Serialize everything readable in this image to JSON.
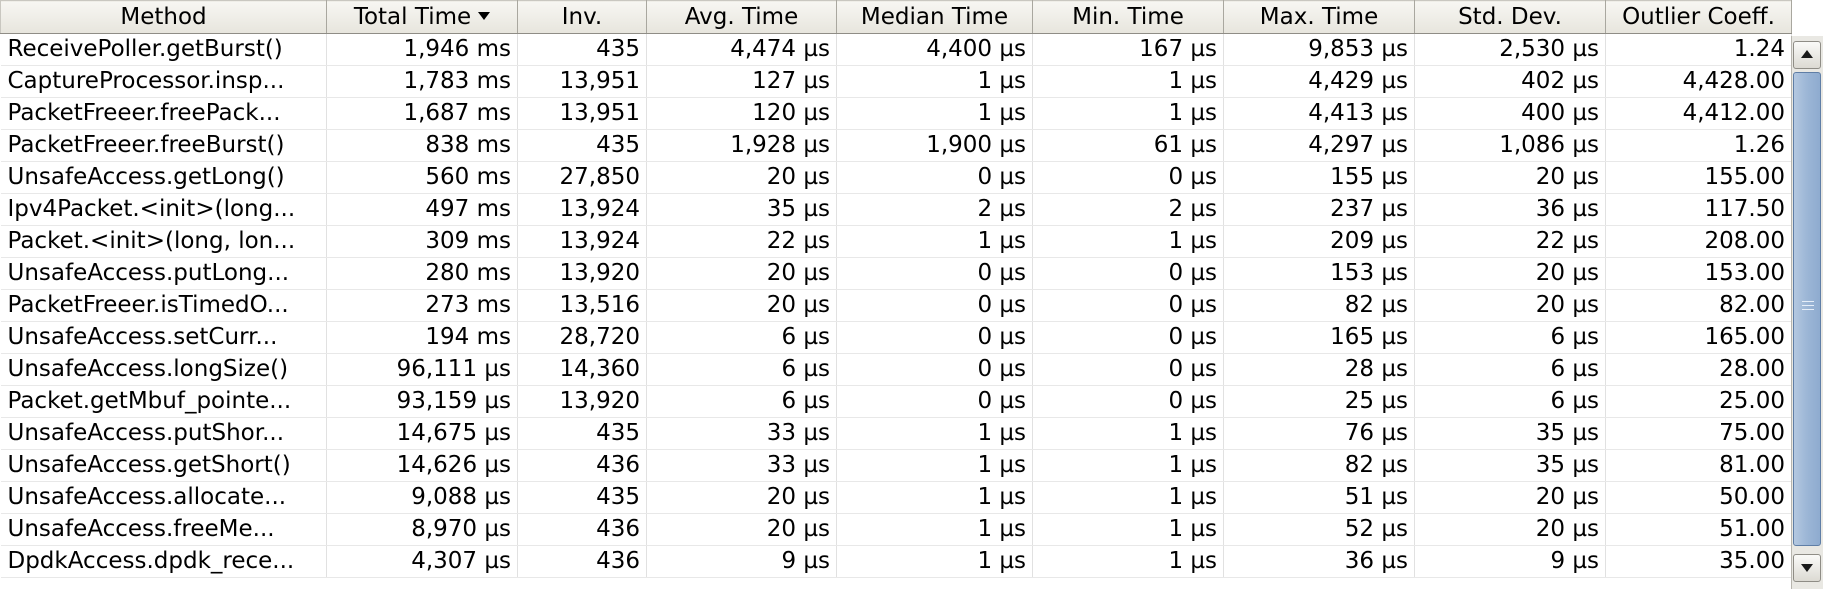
{
  "table": {
    "headers": [
      {
        "label": "Method",
        "sorted": false
      },
      {
        "label": "Total Time",
        "sorted": true
      },
      {
        "label": "Inv.",
        "sorted": false
      },
      {
        "label": "Avg. Time",
        "sorted": false
      },
      {
        "label": "Median Time",
        "sorted": false
      },
      {
        "label": "Min. Time",
        "sorted": false
      },
      {
        "label": "Max. Time",
        "sorted": false
      },
      {
        "label": "Std. Dev.",
        "sorted": false
      },
      {
        "label": "Outlier Coeff.",
        "sorted": false
      }
    ],
    "sort_icon": "sort-descending-icon",
    "rows": [
      [
        "ReceivePoller.getBurst()",
        "1,946 ms",
        "435",
        "4,474 µs",
        "4,400 µs",
        "167 µs",
        "9,853 µs",
        "2,530 µs",
        "1.24"
      ],
      [
        "CaptureProcessor.insp...",
        "1,783 ms",
        "13,951",
        "127 µs",
        "1 µs",
        "1 µs",
        "4,429 µs",
        "402 µs",
        "4,428.00"
      ],
      [
        "PacketFreeer.freePack...",
        "1,687 ms",
        "13,951",
        "120 µs",
        "1 µs",
        "1 µs",
        "4,413 µs",
        "400 µs",
        "4,412.00"
      ],
      [
        "PacketFreeer.freeBurst()",
        "838 ms",
        "435",
        "1,928 µs",
        "1,900 µs",
        "61 µs",
        "4,297 µs",
        "1,086 µs",
        "1.26"
      ],
      [
        "UnsafeAccess.getLong()",
        "560 ms",
        "27,850",
        "20 µs",
        "0 µs",
        "0 µs",
        "155 µs",
        "20 µs",
        "155.00"
      ],
      [
        "Ipv4Packet.<init>(long...",
        "497 ms",
        "13,924",
        "35 µs",
        "2 µs",
        "2 µs",
        "237 µs",
        "36 µs",
        "117.50"
      ],
      [
        "Packet.<init>(long, lon...",
        "309 ms",
        "13,924",
        "22 µs",
        "1 µs",
        "1 µs",
        "209 µs",
        "22 µs",
        "208.00"
      ],
      [
        "UnsafeAccess.putLong...",
        "280 ms",
        "13,920",
        "20 µs",
        "0 µs",
        "0 µs",
        "153 µs",
        "20 µs",
        "153.00"
      ],
      [
        "PacketFreeer.isTimedO...",
        "273 ms",
        "13,516",
        "20 µs",
        "0 µs",
        "0 µs",
        "82 µs",
        "20 µs",
        "82.00"
      ],
      [
        "UnsafeAccess.setCurr...",
        "194 ms",
        "28,720",
        "6 µs",
        "0 µs",
        "0 µs",
        "165 µs",
        "6 µs",
        "165.00"
      ],
      [
        "UnsafeAccess.longSize()",
        "96,111 µs",
        "14,360",
        "6 µs",
        "0 µs",
        "0 µs",
        "28 µs",
        "6 µs",
        "28.00"
      ],
      [
        "Packet.getMbuf_pointe...",
        "93,159 µs",
        "13,920",
        "6 µs",
        "0 µs",
        "0 µs",
        "25 µs",
        "6 µs",
        "25.00"
      ],
      [
        "UnsafeAccess.putShor...",
        "14,675 µs",
        "435",
        "33 µs",
        "1 µs",
        "1 µs",
        "76 µs",
        "35 µs",
        "75.00"
      ],
      [
        "UnsafeAccess.getShort()",
        "14,626 µs",
        "436",
        "33 µs",
        "1 µs",
        "1 µs",
        "82 µs",
        "35 µs",
        "81.00"
      ],
      [
        "UnsafeAccess.allocate...",
        "9,088 µs",
        "435",
        "20 µs",
        "1 µs",
        "1 µs",
        "51 µs",
        "20 µs",
        "50.00"
      ],
      [
        "UnsafeAccess.freeMe...",
        "8,970 µs",
        "436",
        "20 µs",
        "1 µs",
        "1 µs",
        "52 µs",
        "20 µs",
        "51.00"
      ],
      [
        "DpdkAccess.dpdk_rece...",
        "4,307 µs",
        "436",
        "9 µs",
        "1 µs",
        "1 µs",
        "36 µs",
        "9 µs",
        "35.00"
      ]
    ]
  },
  "scrollbar": {
    "up_icon": "scroll-up-arrow-icon",
    "down_icon": "scroll-down-arrow-icon",
    "thumb_icon": "scroll-thumb-grip-icon"
  },
  "colors": {
    "header_bg": "#eeede7",
    "grid_line": "#e1e1e1",
    "scroll_thumb": "#9cb6d6"
  }
}
